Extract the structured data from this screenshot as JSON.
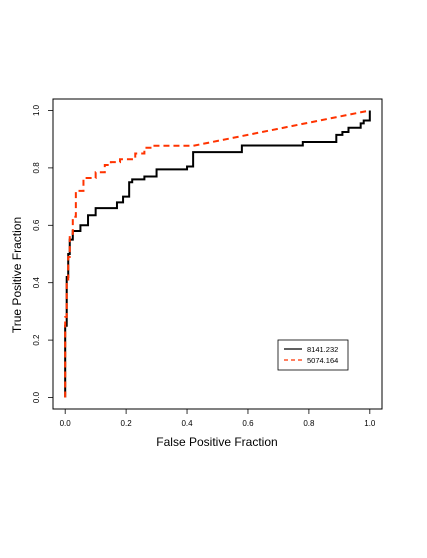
{
  "chart_data": {
    "type": "line",
    "title": "",
    "xlabel": "False Positive Fraction",
    "ylabel": "True Positive Fraction",
    "xlim": [
      -0.04,
      1.04
    ],
    "ylim": [
      -0.04,
      1.04
    ],
    "xticks": [
      "0.0",
      "0.2",
      "0.4",
      "0.6",
      "0.8",
      "1.0"
    ],
    "yticks": [
      "0.0",
      "0.2",
      "0.4",
      "0.6",
      "0.8",
      "1.0"
    ],
    "grid": false,
    "legend_position": "bottom-right",
    "series": [
      {
        "name": "8141.232",
        "color": "#000000",
        "dash": "solid",
        "x": [
          0,
          0,
          0.005,
          0.005,
          0.01,
          0.01,
          0.015,
          0.015,
          0.025,
          0.025,
          0.05,
          0.05,
          0.075,
          0.075,
          0.1,
          0.1,
          0.17,
          0.17,
          0.19,
          0.19,
          0.21,
          0.21,
          0.22,
          0.22,
          0.26,
          0.26,
          0.3,
          0.3,
          0.4,
          0.4,
          0.42,
          0.42,
          0.58,
          0.58,
          0.78,
          0.78,
          0.89,
          0.89,
          0.91,
          0.91,
          0.93,
          0.93,
          0.97,
          0.97,
          0.98,
          0.98,
          1.0,
          1.0
        ],
        "y": [
          0,
          0.25,
          0.25,
          0.42,
          0.42,
          0.5,
          0.5,
          0.55,
          0.55,
          0.58,
          0.58,
          0.6,
          0.6,
          0.635,
          0.635,
          0.66,
          0.66,
          0.68,
          0.68,
          0.7,
          0.7,
          0.75,
          0.75,
          0.76,
          0.76,
          0.77,
          0.77,
          0.795,
          0.795,
          0.805,
          0.805,
          0.855,
          0.855,
          0.878,
          0.878,
          0.89,
          0.89,
          0.915,
          0.915,
          0.925,
          0.925,
          0.94,
          0.94,
          0.955,
          0.955,
          0.965,
          0.965,
          1.0
        ]
      },
      {
        "name": "5074.164",
        "color": "#ff3300",
        "dash": "dashed",
        "x": [
          0,
          0,
          0.005,
          0.005,
          0.01,
          0.01,
          0.015,
          0.015,
          0.025,
          0.025,
          0.035,
          0.035,
          0.06,
          0.06,
          0.1,
          0.1,
          0.13,
          0.13,
          0.15,
          0.15,
          0.18,
          0.18,
          0.23,
          0.23,
          0.26,
          0.26,
          0.28,
          0.28,
          0.42,
          1.0
        ],
        "y": [
          0,
          0.28,
          0.28,
          0.4,
          0.4,
          0.49,
          0.49,
          0.57,
          0.57,
          0.63,
          0.63,
          0.72,
          0.72,
          0.765,
          0.765,
          0.785,
          0.785,
          0.81,
          0.81,
          0.82,
          0.82,
          0.83,
          0.83,
          0.85,
          0.85,
          0.87,
          0.87,
          0.877,
          0.877,
          1.0
        ]
      }
    ]
  }
}
